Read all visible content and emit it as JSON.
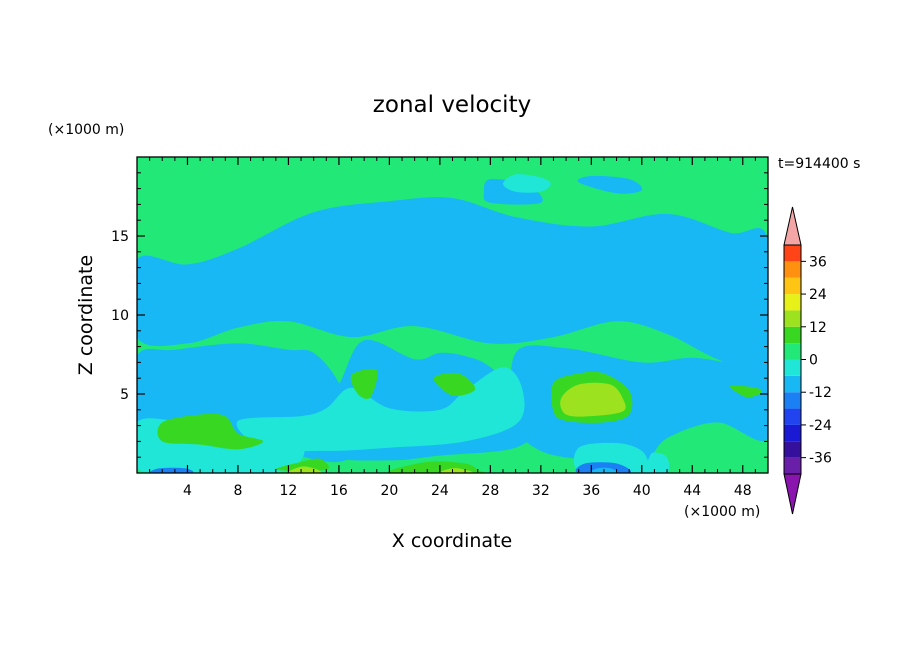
{
  "chart_data": {
    "type": "heatmap",
    "title": "zonal velocity",
    "xlabel": "X coordinate",
    "ylabel": "Z coordinate",
    "x_unit": "(×1000 m)",
    "y_unit": "(×1000 m)",
    "time_label": "t=914400 s",
    "xlim": [
      0,
      50
    ],
    "ylim": [
      0,
      20
    ],
    "x_ticks": [
      4,
      8,
      12,
      16,
      20,
      24,
      28,
      32,
      36,
      40,
      44,
      48
    ],
    "x_tick_labels": [
      "4",
      "8",
      "12",
      "16",
      "20",
      "24",
      "28",
      "32",
      "36",
      "40",
      "44",
      "48"
    ],
    "y_ticks": [
      5,
      10,
      15
    ],
    "y_tick_labels": [
      "5",
      "10",
      "15"
    ],
    "background_level_color": "#22e878",
    "colorbar": {
      "labels": [
        "36",
        "24",
        "12",
        "0",
        "-12",
        "-24",
        "-36"
      ],
      "label_values": [
        36,
        24,
        12,
        0,
        -12,
        -24,
        -36
      ],
      "levels": [
        -42,
        -36,
        -30,
        -24,
        -18,
        -12,
        -6,
        0,
        6,
        12,
        18,
        24,
        30,
        36,
        42
      ],
      "colors": [
        "#6a1fa8",
        "#34109c",
        "#1a1ad4",
        "#2244f0",
        "#1a80f4",
        "#18b8f4",
        "#20e6d8",
        "#22e878",
        "#38d822",
        "#9ce21e",
        "#e8f01a",
        "#ffc414",
        "#ff9010",
        "#ff4418",
        "#ea1c1c"
      ],
      "under_color": "#8a14ae",
      "over_color": "#f4a6a6"
    },
    "regions": [
      {
        "level": 5,
        "pts": [
          [
            0,
            13.5
          ],
          [
            4,
            13.2
          ],
          [
            8,
            14.2
          ],
          [
            14,
            16.5
          ],
          [
            20,
            17.2
          ],
          [
            25,
            17.4
          ],
          [
            30,
            16.2
          ],
          [
            36,
            15.6
          ],
          [
            42,
            16.4
          ],
          [
            47,
            15.2
          ],
          [
            50,
            14.8
          ],
          [
            50,
            6.3
          ],
          [
            46,
            7.2
          ],
          [
            42,
            8.8
          ],
          [
            38,
            9.6
          ],
          [
            33,
            8.6
          ],
          [
            28,
            8.2
          ],
          [
            22,
            9.3
          ],
          [
            17,
            8.6
          ],
          [
            12,
            9.6
          ],
          [
            8,
            9.2
          ],
          [
            4,
            8.2
          ],
          [
            0,
            8.6
          ]
        ]
      },
      {
        "level": 5,
        "pts": [
          [
            0,
            7.4
          ],
          [
            3,
            7.8
          ],
          [
            8,
            8.2
          ],
          [
            12,
            7.8
          ],
          [
            14,
            7.6
          ],
          [
            16,
            5.7
          ],
          [
            17.5,
            2.4
          ],
          [
            16,
            0.7
          ],
          [
            10,
            1.6
          ],
          [
            5,
            2.1
          ],
          [
            2,
            2.5
          ],
          [
            0,
            2.9
          ]
        ]
      },
      {
        "level": 5,
        "pts": [
          [
            18,
            8.4
          ],
          [
            22,
            7.2
          ],
          [
            24,
            7.6
          ],
          [
            26,
            7.4
          ],
          [
            28,
            6.7
          ],
          [
            31,
            4.4
          ],
          [
            32,
            3.2
          ],
          [
            30,
            1.6
          ],
          [
            24,
            1.1
          ],
          [
            20,
            0.8
          ],
          [
            15,
            1.1
          ],
          [
            14,
            3.2
          ],
          [
            16,
            5.6
          ]
        ]
      },
      {
        "level": 5,
        "pts": [
          [
            30,
            7.6
          ],
          [
            34,
            7.9
          ],
          [
            40,
            7.0
          ],
          [
            44,
            7.3
          ],
          [
            48,
            6.9
          ],
          [
            50,
            7.6
          ],
          [
            50,
            2.2
          ],
          [
            46,
            3.2
          ],
          [
            42,
            2.2
          ],
          [
            40,
            0.6
          ],
          [
            36,
            0.8
          ],
          [
            32,
            1.4
          ],
          [
            30,
            3.2
          ]
        ]
      },
      {
        "level": 5,
        "pts": [
          [
            35,
            18.4
          ],
          [
            38,
            17.7
          ],
          [
            40,
            17.9
          ],
          [
            39,
            18.6
          ],
          [
            36,
            18.8
          ]
        ]
      },
      {
        "level": 5,
        "pts": [
          [
            28,
            18.6
          ],
          [
            31,
            18.2
          ],
          [
            32,
            17.1
          ],
          [
            28,
            17.1
          ],
          [
            27.5,
            17.8
          ]
        ]
      },
      {
        "level": 6,
        "pts": [
          [
            8,
            3.3
          ],
          [
            13,
            3.6
          ],
          [
            15,
            4.1
          ],
          [
            17,
            5.4
          ],
          [
            20,
            4.1
          ],
          [
            24,
            4.0
          ],
          [
            26,
            5.2
          ],
          [
            29,
            6.7
          ],
          [
            30.5,
            5.4
          ],
          [
            30.2,
            3.2
          ],
          [
            26,
            2.0
          ],
          [
            20,
            1.6
          ],
          [
            15,
            1.4
          ],
          [
            10,
            1.6
          ]
        ]
      },
      {
        "level": 6,
        "pts": [
          [
            0,
            3.2
          ],
          [
            3,
            3.3
          ],
          [
            6,
            2.8
          ],
          [
            8,
            2.4
          ],
          [
            13,
            1.8
          ],
          [
            12,
            0.2
          ],
          [
            7,
            0.0
          ],
          [
            2,
            0.1
          ],
          [
            0,
            0.4
          ]
        ]
      },
      {
        "level": 6,
        "pts": [
          [
            35.2,
            0.0
          ],
          [
            35,
            1.6
          ],
          [
            38,
            1.9
          ],
          [
            40,
            1.4
          ],
          [
            40.6,
            0.3
          ],
          [
            40,
            0.0
          ]
        ]
      },
      {
        "level": 6,
        "pts": [
          [
            40.3,
            0.0
          ],
          [
            42,
            0.0
          ],
          [
            42,
            1.0
          ],
          [
            41,
            1.3
          ],
          [
            40.6,
            1.0
          ]
        ]
      },
      {
        "level": 6,
        "pts": [
          [
            29,
            18.3
          ],
          [
            30,
            18.9
          ],
          [
            32,
            18.7
          ],
          [
            32.8,
            18.3
          ],
          [
            32,
            17.8
          ],
          [
            30,
            17.8
          ]
        ]
      },
      {
        "level": 8,
        "pts": [
          [
            2,
            3.2
          ],
          [
            5,
            3.7
          ],
          [
            7,
            3.6
          ],
          [
            8,
            2.5
          ],
          [
            10,
            2.0
          ],
          [
            8,
            1.5
          ],
          [
            5,
            1.8
          ],
          [
            2,
            2.0
          ]
        ]
      },
      {
        "level": 8,
        "pts": [
          [
            17,
            6.2
          ],
          [
            19,
            6.5
          ],
          [
            18.5,
            4.8
          ],
          [
            17.5,
            5.0
          ]
        ]
      },
      {
        "level": 8,
        "pts": [
          [
            23.5,
            6.0
          ],
          [
            25.5,
            6.3
          ],
          [
            26.8,
            5.3
          ],
          [
            25,
            4.9
          ]
        ]
      },
      {
        "level": 8,
        "pts": [
          [
            33,
            5.7
          ],
          [
            35,
            6.3
          ],
          [
            37,
            6.3
          ],
          [
            39,
            5.2
          ],
          [
            39,
            3.7
          ],
          [
            37,
            3.2
          ],
          [
            34,
            3.3
          ],
          [
            33,
            3.9
          ]
        ]
      },
      {
        "level": 8,
        "pts": [
          [
            11,
            0.2
          ],
          [
            13,
            0.7
          ],
          [
            14.5,
            0.9
          ],
          [
            15,
            0.2
          ]
        ]
      },
      {
        "level": 8,
        "pts": [
          [
            20,
            0.0
          ],
          [
            23,
            0.7
          ],
          [
            26,
            0.6
          ],
          [
            27,
            0.2
          ],
          [
            27,
            0.0
          ]
        ]
      },
      {
        "level": 8,
        "pts": [
          [
            47,
            5.5
          ],
          [
            49,
            5.4
          ],
          [
            49.5,
            5.1
          ],
          [
            48.3,
            4.8
          ]
        ]
      },
      {
        "level": 9,
        "pts": [
          [
            33.6,
            4.7
          ],
          [
            35,
            5.6
          ],
          [
            37.5,
            5.6
          ],
          [
            38.5,
            4.7
          ],
          [
            38.5,
            3.9
          ],
          [
            36,
            3.6
          ],
          [
            34,
            3.7
          ]
        ]
      },
      {
        "level": 9,
        "pts": [
          [
            12,
            0.0
          ],
          [
            13,
            0.4
          ],
          [
            14,
            0.3
          ],
          [
            14.5,
            0.0
          ]
        ]
      },
      {
        "level": 9,
        "pts": [
          [
            24,
            0.0
          ],
          [
            25,
            0.3
          ],
          [
            26,
            0.2
          ],
          [
            26.5,
            0.0
          ]
        ]
      },
      {
        "level": 6,
        "pts": [
          [
            1,
            0.0
          ],
          [
            1.5,
            0.5
          ],
          [
            4,
            0.4
          ],
          [
            4.5,
            0.0
          ]
        ]
      },
      {
        "level": 4,
        "pts": [
          [
            1.2,
            0.0
          ],
          [
            1.8,
            0.3
          ],
          [
            3.8,
            0.3
          ],
          [
            4.3,
            0.0
          ]
        ]
      },
      {
        "level": 4,
        "pts": [
          [
            35,
            0.0
          ],
          [
            35.5,
            0.6
          ],
          [
            38,
            0.6
          ],
          [
            39,
            0.0
          ]
        ]
      },
      {
        "level": 5,
        "pts": [
          [
            36,
            0.0
          ],
          [
            36.5,
            0.3
          ],
          [
            37.5,
            0.3
          ],
          [
            38,
            0.0
          ]
        ]
      }
    ]
  }
}
